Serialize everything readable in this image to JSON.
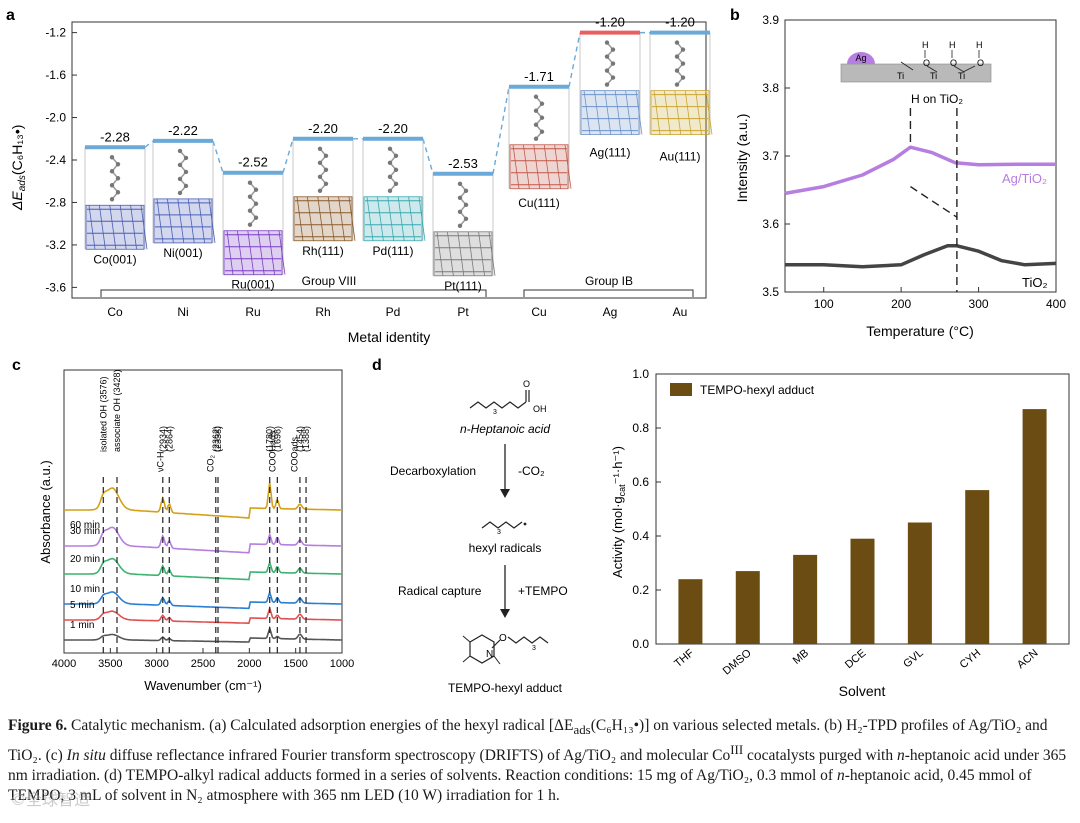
{
  "panel_a": {
    "label": "a",
    "ylabel_main": "ΔE",
    "ylabel_sub": "ads",
    "ylabel_rest": "(C₆H₁₃•)",
    "xlabel": "Metal identity",
    "yticks": [
      "-1.2",
      "-1.6",
      "-2.0",
      "-2.4",
      "-2.8",
      "-3.2",
      "-3.6"
    ],
    "categories": [
      "Co",
      "Ni",
      "Ru",
      "Rh",
      "Pd",
      "Pt",
      "Cu",
      "Ag",
      "Au"
    ],
    "values": [
      "-2.28",
      "-2.22",
      "-2.52",
      "-2.20",
      "-2.20",
      "-2.53",
      "-1.71",
      "-1.20",
      "-1.20"
    ],
    "surface_labels": [
      "Co(001)",
      "Ni(001)",
      "Ru(001)",
      "Rh(111)",
      "Pd(111)",
      "Pt(111)",
      "Cu(111)",
      "Ag(111)",
      "Au(111)"
    ],
    "group_labels": [
      "Group VIII",
      "Group IB"
    ],
    "colors": {
      "bar": "#6aa9d8",
      "bar_ag": "#e86060",
      "dash": "#6aa9d8"
    }
  },
  "chart_data": [
    {
      "type": "bar",
      "title": "",
      "ylabel": "ΔEads(C6H13•)",
      "xlabel": "Metal identity",
      "categories": [
        "Co",
        "Ni",
        "Ru",
        "Rh",
        "Pd",
        "Pt",
        "Cu",
        "Ag",
        "Au"
      ],
      "values": [
        -2.28,
        -2.22,
        -2.52,
        -2.2,
        -2.2,
        -2.53,
        -1.71,
        -1.2,
        -1.2
      ],
      "ylim": [
        -3.7,
        -1.1
      ]
    },
    {
      "type": "line",
      "xlabel": "Temperature (°C)",
      "ylabel": "Intensity (a.u.)",
      "xlim": [
        50,
        400
      ],
      "ylim": [
        3.5,
        3.9
      ],
      "series": [
        {
          "name": "Ag/TiO2",
          "x": [
            50,
            100,
            150,
            190,
            212,
            240,
            270,
            300,
            350,
            400
          ],
          "y": [
            3.645,
            3.655,
            3.672,
            3.695,
            3.713,
            3.705,
            3.69,
            3.687,
            3.688,
            3.688
          ]
        },
        {
          "name": "TiO2",
          "x": [
            50,
            100,
            150,
            200,
            230,
            260,
            272,
            300,
            330,
            360,
            400
          ],
          "y": [
            3.54,
            3.54,
            3.537,
            3.54,
            3.555,
            3.568,
            3.568,
            3.56,
            3.546,
            3.54,
            3.542
          ]
        }
      ]
    },
    {
      "type": "line",
      "xlabel": "Wavenumber (cm⁻¹)",
      "ylabel": "Absorbance (a.u.)",
      "xlim": [
        4000,
        1000
      ],
      "series": [
        {
          "name": "1 min"
        },
        {
          "name": "5 min"
        },
        {
          "name": "10 min"
        },
        {
          "name": "20 min"
        },
        {
          "name": "30 min"
        },
        {
          "name": "60 min"
        }
      ]
    },
    {
      "type": "bar",
      "xlabel": "Solvent",
      "ylabel": "Activity (mol·gcat⁻¹·h⁻¹)",
      "categories": [
        "THF",
        "DMSO",
        "MB",
        "DCE",
        "GVL",
        "CYH",
        "ACN"
      ],
      "series": [
        {
          "name": "TEMPO-hexyl adduct",
          "values": [
            0.24,
            0.27,
            0.33,
            0.39,
            0.45,
            0.57,
            0.87
          ]
        }
      ],
      "ylim": [
        0,
        1.0
      ]
    }
  ],
  "panel_b": {
    "label": "b",
    "xlabel": "Temperature (°C)",
    "ylabel": "Intensity (a.u.)",
    "xticks": [
      "100",
      "200",
      "300",
      "400"
    ],
    "yticks": [
      "3.5",
      "3.6",
      "3.7",
      "3.8",
      "3.9"
    ],
    "annotation": "H on TiO₂",
    "inset_ag": "Ag",
    "inset_h": "H",
    "inset_o": "O",
    "inset_ti": "Ti",
    "series_names": [
      "Ag/TiO₂",
      "TiO₂"
    ],
    "colors": {
      "ag": "#b57ee0",
      "tio2": "#444444",
      "inset_ag": "#b57ee0"
    }
  },
  "panel_c": {
    "label": "c",
    "xlabel": "Wavenumber (cm⁻¹)",
    "ylabel": "Absorbance (a.u.)",
    "xticks": [
      "4000",
      "3500",
      "3000",
      "2500",
      "2000",
      "1500",
      "1000"
    ],
    "time_labels": [
      "60 min",
      "30 min",
      "20 min",
      "10 min",
      "5 min",
      "1 min"
    ],
    "peak_labels": [
      "isolated OH (3576)",
      "associate OH (3428)",
      "νC-H",
      "(2934)",
      "(2864)",
      "(2362)",
      "(2338)",
      "CO₂",
      "(1780)",
      "(1698)",
      "COOHads",
      "(1454)",
      "(1388)",
      "COOads"
    ],
    "colors": [
      "#d4a017",
      "#b57ee0",
      "#3cb371",
      "#2a7fd4",
      "#e05050",
      "#555555"
    ]
  },
  "panel_d": {
    "label": "d",
    "scheme": {
      "reactant": "n-Heptanoic acid",
      "step1": "Decarboxylation",
      "step1_reagent": "-CO₂",
      "intermediate": "hexyl radicals",
      "step2": "Radical capture",
      "step2_reagent": "+TEMPO",
      "product": "TEMPO-hexyl adduct"
    },
    "xlabel": "Solvent",
    "ylabel": "Activity (mol·g",
    "ylabel_sub": "cat",
    "ylabel_rest": "⁻¹·h⁻¹)",
    "legend": "TEMPO-hexyl adduct",
    "yticks": [
      "0.0",
      "0.2",
      "0.4",
      "0.6",
      "0.8",
      "1.0"
    ],
    "colors": {
      "bar": "#6b4c12"
    }
  },
  "caption": {
    "figure_label": "Figure 6.",
    "text_1": " Catalytic mechanism. (a) Calculated adsorption energies of the hexyl radical [ΔE",
    "text_1_sub": "ads",
    "text_2": "(C₆H₁₃•)] on various selected metals. (b) H₂-TPD profiles of Ag/TiO₂ and TiO₂. (c) ",
    "italic_1": "In situ",
    "text_3": " diffuse reflectance infrared Fourier transform spectroscopy (DRIFTS) of Ag/TiO₂ and molecular Co",
    "text_3_sup": "III",
    "text_4": " cocatalysts purged with ",
    "italic_2": "n",
    "text_5": "-heptanoic acid under 365 nm irradiation. (d) TEMPO-alkyl radical adducts formed in a series of solvents. Reaction conditions: 15 mg of Ag/TiO₂, 0.3 mmol of ",
    "italic_3": "n",
    "text_6": "-heptanoic acid, 0.45 mmol of TEMPO, 3 mL of solvent in N₂ atmosphere with 365 nm LED (10 W) irradiation for 1 h."
  },
  "watermark": "©全球智造"
}
